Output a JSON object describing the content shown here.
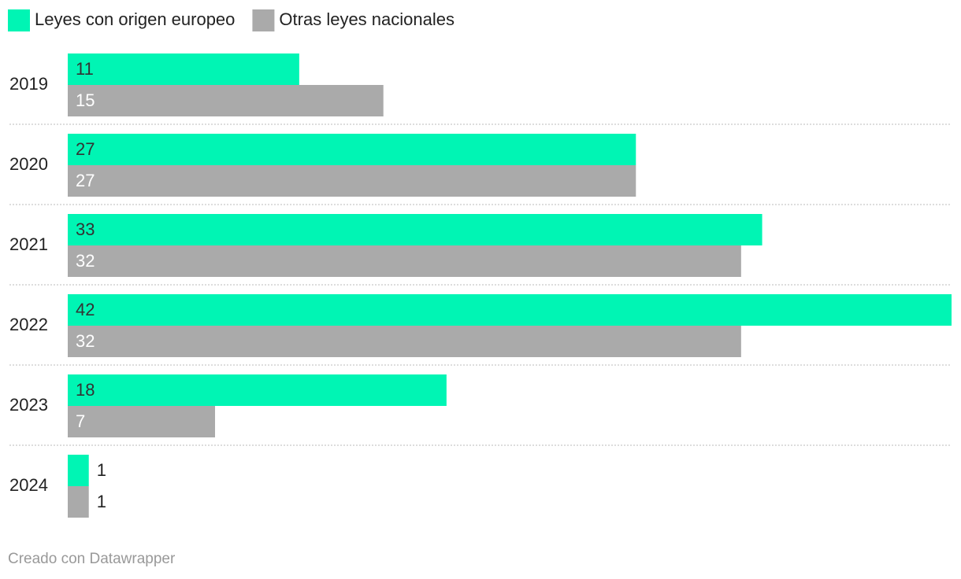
{
  "chart_data": {
    "type": "grouped-hbar",
    "categories": [
      "2019",
      "2020",
      "2021",
      "2022",
      "2023",
      "2024"
    ],
    "series": [
      {
        "name": "Leyes con origen europeo",
        "color": "#00f5b4",
        "values": [
          11,
          27,
          33,
          42,
          18,
          1
        ]
      },
      {
        "name": "Otras leyes nacionales",
        "color": "#aaaaaa",
        "values": [
          15,
          27,
          32,
          32,
          7,
          1
        ]
      }
    ],
    "xlim": [
      0,
      42
    ],
    "credit": "Creado con Datawrapper"
  }
}
